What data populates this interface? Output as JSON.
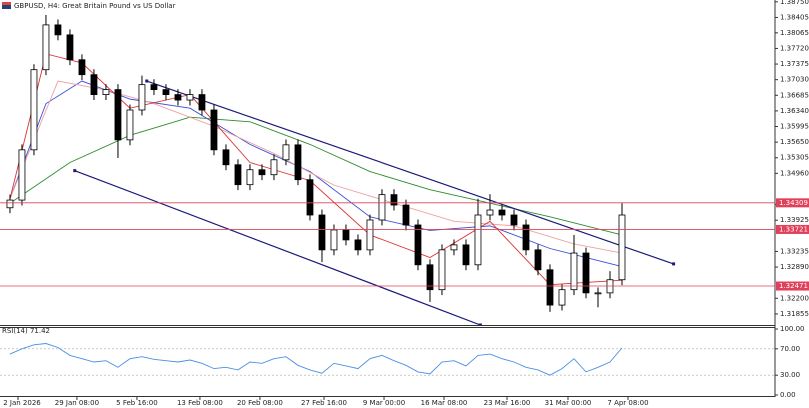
{
  "chart_data": [
    {
      "type": "candlestick",
      "title": "GBPUSD, H4:  Great Britain Pound vs US Dollar",
      "candles": {
        "open": [
          1.342,
          1.3437,
          1.3548,
          1.3725,
          1.3824,
          1.3802,
          1.3747,
          1.3714,
          1.367,
          1.3681,
          1.357,
          1.3636,
          1.3692,
          1.3681,
          1.367,
          1.3658,
          1.367,
          1.3636,
          1.3548,
          1.3515,
          1.3471,
          1.3504,
          1.3493,
          1.3526,
          1.3559,
          1.3482,
          1.3404,
          1.3327,
          1.3371,
          1.3349,
          1.3327,
          1.3393,
          1.3449,
          1.3426,
          1.3382,
          1.3294,
          1.3239,
          1.3327,
          1.3338,
          1.3294,
          1.3404,
          1.3415,
          1.3404,
          1.3382,
          1.3327,
          1.3283,
          1.3205,
          1.3239,
          1.332,
          1.3232,
          1.3232,
          1.3261
        ],
        "high": [
          1.3449,
          1.356,
          1.3737,
          1.3846,
          1.3836,
          1.3814,
          1.3759,
          1.3726,
          1.3693,
          1.3693,
          1.3648,
          1.3712,
          1.3704,
          1.3693,
          1.3682,
          1.3682,
          1.3682,
          1.3648,
          1.356,
          1.3527,
          1.3516,
          1.3516,
          1.3538,
          1.3571,
          1.3571,
          1.3494,
          1.3416,
          1.3383,
          1.3383,
          1.3361,
          1.3405,
          1.3461,
          1.3461,
          1.3438,
          1.3394,
          1.3306,
          1.3339,
          1.335,
          1.335,
          1.344,
          1.345,
          1.3427,
          1.3416,
          1.3394,
          1.3339,
          1.3295,
          1.3251,
          1.336,
          1.3332,
          1.3244,
          1.328,
          1.343
        ],
        "low": [
          1.3408,
          1.3425,
          1.3536,
          1.3713,
          1.379,
          1.3735,
          1.3702,
          1.3658,
          1.3658,
          1.353,
          1.3558,
          1.3624,
          1.3669,
          1.3658,
          1.3646,
          1.3646,
          1.3624,
          1.3536,
          1.3503,
          1.3459,
          1.3459,
          1.3481,
          1.3481,
          1.3514,
          1.347,
          1.3392,
          1.33,
          1.3315,
          1.3337,
          1.3315,
          1.3315,
          1.3381,
          1.3414,
          1.337,
          1.3282,
          1.3212,
          1.3227,
          1.3315,
          1.3282,
          1.3282,
          1.3392,
          1.3392,
          1.337,
          1.3315,
          1.3271,
          1.319,
          1.3193,
          1.3227,
          1.322,
          1.32,
          1.322,
          1.3249
        ],
        "close": [
          1.3437,
          1.3548,
          1.3725,
          1.3824,
          1.3802,
          1.3747,
          1.3714,
          1.367,
          1.3681,
          1.357,
          1.3636,
          1.3692,
          1.3681,
          1.367,
          1.3658,
          1.367,
          1.3636,
          1.3548,
          1.3515,
          1.3471,
          1.3504,
          1.3493,
          1.3526,
          1.3559,
          1.3482,
          1.3404,
          1.3327,
          1.3371,
          1.3349,
          1.3327,
          1.3393,
          1.3449,
          1.3426,
          1.3382,
          1.3294,
          1.3239,
          1.3327,
          1.3338,
          1.3294,
          1.3404,
          1.3415,
          1.3404,
          1.3382,
          1.3327,
          1.3283,
          1.3205,
          1.3239,
          1.332,
          1.3232,
          1.3232,
          1.3261,
          1.3404
        ]
      },
      "series": [
        {
          "color": "#2e8b2e",
          "x": [
            0,
            5,
            10,
            15,
            20,
            25,
            30,
            35,
            40,
            45,
            51
          ],
          "values": [
            1.343,
            1.352,
            1.358,
            1.362,
            1.361,
            1.356,
            1.35,
            1.346,
            1.343,
            1.34,
            1.336
          ]
        },
        {
          "color": "#3a4fd8",
          "x": [
            0,
            3,
            6,
            10,
            15,
            20,
            25,
            30,
            35,
            40,
            45,
            51
          ],
          "values": [
            1.344,
            1.365,
            1.37,
            1.366,
            1.364,
            1.356,
            1.35,
            1.34,
            1.337,
            1.338,
            1.333,
            1.329
          ]
        },
        {
          "color": "#f0a0a0",
          "x": [
            0,
            4,
            8,
            12,
            17,
            22,
            27,
            32,
            37,
            42,
            47,
            51
          ],
          "values": [
            1.344,
            1.37,
            1.368,
            1.365,
            1.36,
            1.354,
            1.347,
            1.343,
            1.339,
            1.338,
            1.334,
            1.332
          ]
        },
        {
          "color": "#e03030",
          "x": [
            0,
            3,
            6,
            10,
            15,
            20,
            25,
            30,
            35,
            40,
            45,
            51
          ],
          "values": [
            1.344,
            1.376,
            1.374,
            1.364,
            1.367,
            1.352,
            1.348,
            1.336,
            1.331,
            1.339,
            1.325,
            1.326
          ]
        }
      ],
      "trendlines": [
        {
          "color": "#1a1a7a",
          "x": [
            11.4,
            55.3
          ],
          "y": [
            1.37,
            1.3296
          ]
        },
        {
          "color": "#1a1a7a",
          "x": [
            5.4,
            39.2
          ],
          "y": [
            1.3502,
            1.3161
          ]
        }
      ],
      "levels": {
        "color": "#e0405a",
        "values": [
          1.34309,
          1.33721,
          1.32471
        ]
      },
      "xlim": [
        -0.83,
        63.75
      ],
      "ylim": [
        1.3161,
        1.3879
      ],
      "xticks": [
        {
          "value": 0.67,
          "label": "2 Jan 2026"
        },
        {
          "value": 5.58,
          "label": "29 Jan 08:00"
        },
        {
          "value": 10.58,
          "label": "5 Feb 16:00"
        },
        {
          "value": 15.83,
          "label": "13 Feb 08:00"
        },
        {
          "value": 20.83,
          "label": "20 Feb 08:00"
        },
        {
          "value": 26.17,
          "label": "27 Feb 16:00"
        },
        {
          "value": 31.17,
          "label": "9 Mar 00:00"
        },
        {
          "value": 36.17,
          "label": "16 Mar 08:00"
        },
        {
          "value": 41.42,
          "label": "23 Mar 16:00"
        },
        {
          "value": 46.5,
          "label": "31 Mar 00:00"
        },
        {
          "value": 51.5,
          "label": "7 Apr 08:00"
        }
      ],
      "yticks": [
        {
          "value": 1.3875,
          "label": "1.38750"
        },
        {
          "value": 1.38405,
          "label": "1.38405"
        },
        {
          "value": 1.38065,
          "label": "1.38065"
        },
        {
          "value": 1.3772,
          "label": "1.37720"
        },
        {
          "value": 1.37375,
          "label": "1.37375"
        },
        {
          "value": 1.3703,
          "label": "1.37030"
        },
        {
          "value": 1.36685,
          "label": "1.36685"
        },
        {
          "value": 1.3634,
          "label": "1.36340"
        },
        {
          "value": 1.35995,
          "label": "1.35995"
        },
        {
          "value": 1.3565,
          "label": "1.35650"
        },
        {
          "value": 1.35305,
          "label": "1.35305"
        },
        {
          "value": 1.3496,
          "label": "1.34960"
        },
        {
          "value": 1.3427,
          "label": "1.34270"
        },
        {
          "value": 1.33925,
          "label": "1.33925"
        },
        {
          "value": 1.33235,
          "label": "1.33235"
        },
        {
          "value": 1.3289,
          "label": "1.32890"
        },
        {
          "value": 1.322,
          "label": "1.32200"
        },
        {
          "value": 1.31855,
          "label": "1.31855"
        }
      ]
    },
    {
      "type": "line",
      "title": "RSI(14) 71.42",
      "color": "#4a90e2",
      "values": [
        62,
        70,
        76,
        78,
        72,
        60,
        55,
        50,
        52,
        42,
        55,
        58,
        54,
        52,
        50,
        53,
        48,
        40,
        42,
        38,
        50,
        48,
        55,
        58,
        45,
        38,
        33,
        48,
        44,
        40,
        55,
        60,
        52,
        45,
        35,
        32,
        50,
        52,
        44,
        60,
        62,
        55,
        50,
        42,
        38,
        30,
        40,
        55,
        35,
        42,
        50,
        71.42
      ],
      "ylim": [
        0,
        100
      ],
      "yticks": [
        {
          "value": 100,
          "label": "100.00"
        },
        {
          "value": 70,
          "label": "70.00"
        },
        {
          "value": 30,
          "label": "30.00"
        },
        {
          "value": 0,
          "label": "0.00"
        }
      ]
    }
  ]
}
